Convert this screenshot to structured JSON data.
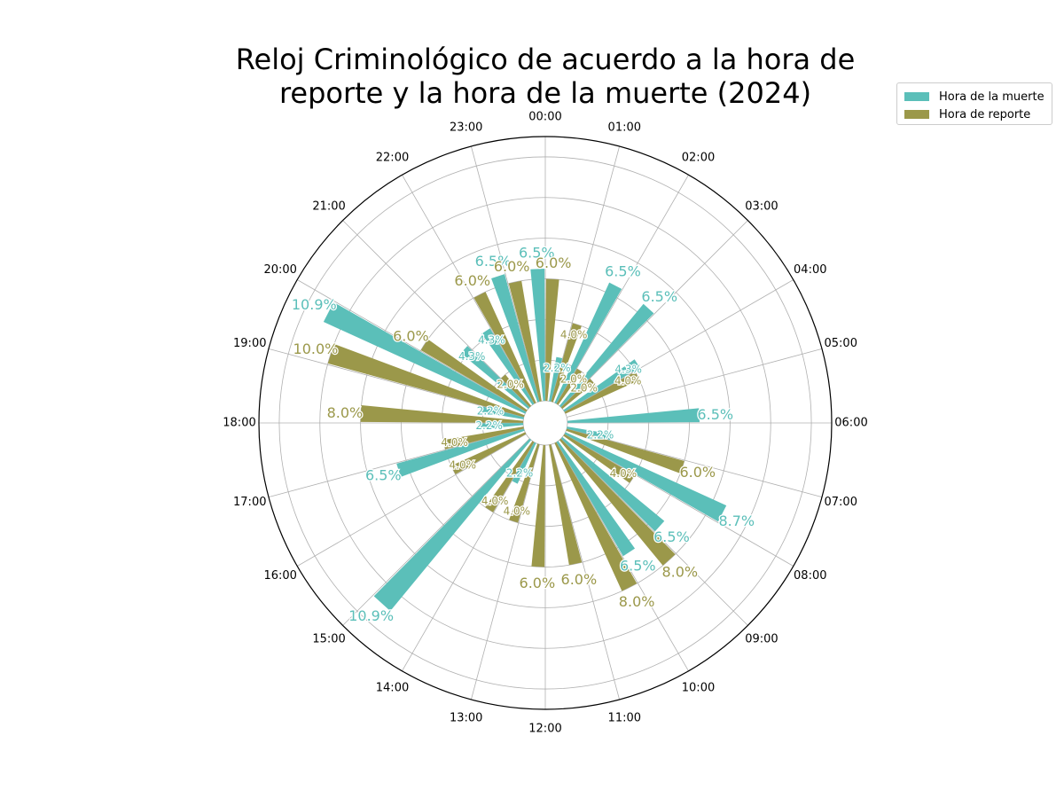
{
  "chart_data": {
    "type": "polar-bar",
    "title_lines": [
      "Reloj Criminológico de acuerdo a la hora de",
      "reporte y la hora de la muerte (2024)"
    ],
    "hour_labels": [
      "00:00",
      "01:00",
      "02:00",
      "03:00",
      "04:00",
      "05:00",
      "06:00",
      "07:00",
      "08:00",
      "09:00",
      "10:00",
      "11:00",
      "12:00",
      "13:00",
      "14:00",
      "15:00",
      "16:00",
      "17:00",
      "18:00",
      "19:00",
      "20:00",
      "21:00",
      "22:00",
      "23:00"
    ],
    "radial_max": 13,
    "grid": true,
    "legend_position": "upper-right",
    "series": [
      {
        "name": "Hora de la muerte",
        "color": "#5bbfb9",
        "values": [
          6.5,
          2.2,
          6.5,
          6.5,
          4.3,
          0,
          6.5,
          2.2,
          8.7,
          6.5,
          6.5,
          0,
          0,
          0,
          2.2,
          10.9,
          0,
          6.5,
          2.2,
          2.2,
          10.9,
          4.3,
          4.3,
          6.5
        ],
        "labels": [
          "6.5%",
          "2.2%",
          "6.5%",
          "6.5%",
          "4.3%",
          "",
          "6.5%",
          "2.2%",
          "8.7%",
          "6.5%",
          "6.5%",
          "",
          "",
          "",
          "2.2%",
          "10.9%",
          "",
          "6.5%",
          "2.2%",
          "2.2%",
          "10.9%",
          "4.3%",
          "4.3%",
          "6.5%"
        ]
      },
      {
        "name": "Hora de reporte",
        "color": "#9b984a",
        "values": [
          6.0,
          4.0,
          2.0,
          2.0,
          4.0,
          0,
          0,
          6.0,
          4.0,
          8.0,
          8.0,
          6.0,
          6.0,
          4.0,
          4.0,
          0,
          4.0,
          4.0,
          8.0,
          10.0,
          6.0,
          2.0,
          6.0,
          6.0
        ],
        "labels": [
          "6.0%",
          "4.0%",
          "2.0%",
          "2.0%",
          "4.0%",
          "",
          "",
          "6.0%",
          "4.0%",
          "8.0%",
          "8.0%",
          "6.0%",
          "6.0%",
          "4.0%",
          "4.0%",
          "",
          "4.0%",
          "4.0%",
          "8.0%",
          "10.0%",
          "6.0%",
          "2.0%",
          "6.0%",
          "6.0%"
        ]
      }
    ]
  }
}
